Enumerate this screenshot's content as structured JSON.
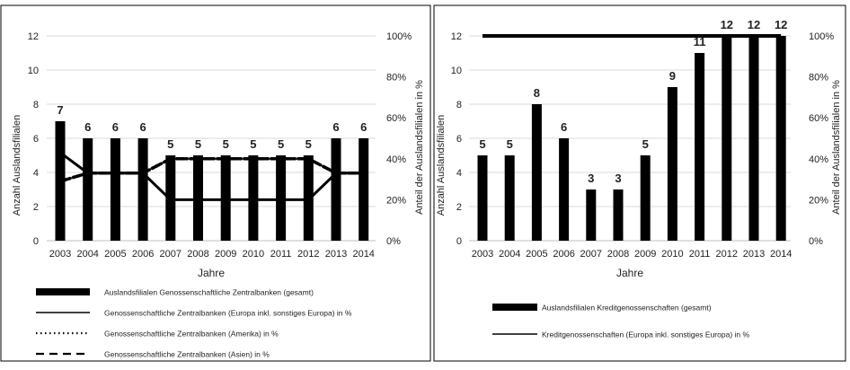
{
  "chart_data": [
    {
      "type": "bar",
      "categories": [
        "2003",
        "2004",
        "2005",
        "2006",
        "2007",
        "2008",
        "2009",
        "2010",
        "2011",
        "2012",
        "2013",
        "2014"
      ],
      "xlabel": "Jahre",
      "ylabel": "Anzahl Auslandsfilialen",
      "y2label": "Anteil der Auslandsfilialen in %",
      "ylim": [
        0,
        12
      ],
      "yticks": [
        "0",
        "2",
        "4",
        "6",
        "8",
        "10",
        "12"
      ],
      "y2lim": [
        0,
        100
      ],
      "y2ticks": [
        "0%",
        "20%",
        "40%",
        "60%",
        "80%",
        "100%"
      ],
      "grid": true,
      "legend_position": "bottom",
      "series": [
        {
          "name": "Auslandsfilialen Genossenschaftliche Zentralbanken (gesamt)",
          "kind": "bar",
          "axis": "left",
          "values": [
            7,
            6,
            6,
            6,
            5,
            5,
            5,
            5,
            5,
            5,
            6,
            6
          ],
          "labels": [
            "7",
            "6",
            "6",
            "6",
            "5",
            "5",
            "5",
            "5",
            "5",
            "5",
            "6",
            "6"
          ]
        },
        {
          "name": "Genossenschaftliche Zentralbanken (Europa inkl. sonstiges Europa) in %",
          "kind": "line",
          "style": "solid",
          "axis": "right",
          "values": [
            43,
            33,
            33,
            33,
            20,
            20,
            20,
            20,
            20,
            20,
            33,
            33
          ]
        },
        {
          "name": "Genossenschaftliche Zentralbanken (Amerika) in %",
          "kind": "line",
          "style": "dotted",
          "axis": "right",
          "values": [
            29,
            33,
            33,
            33,
            40,
            40,
            40,
            40,
            40,
            40,
            33,
            33
          ]
        },
        {
          "name": "Genossenschaftliche Zentralbanken (Asien) in %",
          "kind": "line",
          "style": "dashed",
          "axis": "right",
          "values": [
            29,
            33,
            33,
            33,
            40,
            40,
            40,
            40,
            40,
            40,
            33,
            33
          ]
        }
      ]
    },
    {
      "type": "bar",
      "categories": [
        "2003",
        "2004",
        "2005",
        "2006",
        "2007",
        "2008",
        "2009",
        "2010",
        "2011",
        "2012",
        "2013",
        "2014"
      ],
      "xlabel": "Jahre",
      "ylabel": "Anzahl Auslandsfilialen",
      "y2label": "Anteil der Auslandsfilialen in %",
      "ylim": [
        0,
        12
      ],
      "yticks": [
        "0",
        "2",
        "4",
        "6",
        "8",
        "10",
        "12"
      ],
      "y2lim": [
        0,
        100
      ],
      "y2ticks": [
        "0%",
        "20%",
        "40%",
        "60%",
        "80%",
        "100%"
      ],
      "grid": true,
      "legend_position": "bottom",
      "series": [
        {
          "name": "Auslandsfilialen Kreditgenossenschaften (gesamt)",
          "kind": "bar",
          "axis": "left",
          "values": [
            5,
            5,
            8,
            6,
            3,
            3,
            5,
            9,
            11,
            12,
            12,
            12
          ],
          "labels": [
            "5",
            "5",
            "8",
            "6",
            "3",
            "3",
            "5",
            "9",
            "11",
            "12",
            "12",
            "12"
          ]
        },
        {
          "name": "Kreditgenossenschaften (Europa inkl. sonstiges Europa) in %",
          "kind": "line",
          "style": "solid",
          "axis": "right",
          "values": [
            100,
            100,
            100,
            100,
            100,
            100,
            100,
            100,
            100,
            100,
            100,
            100
          ]
        }
      ]
    }
  ]
}
